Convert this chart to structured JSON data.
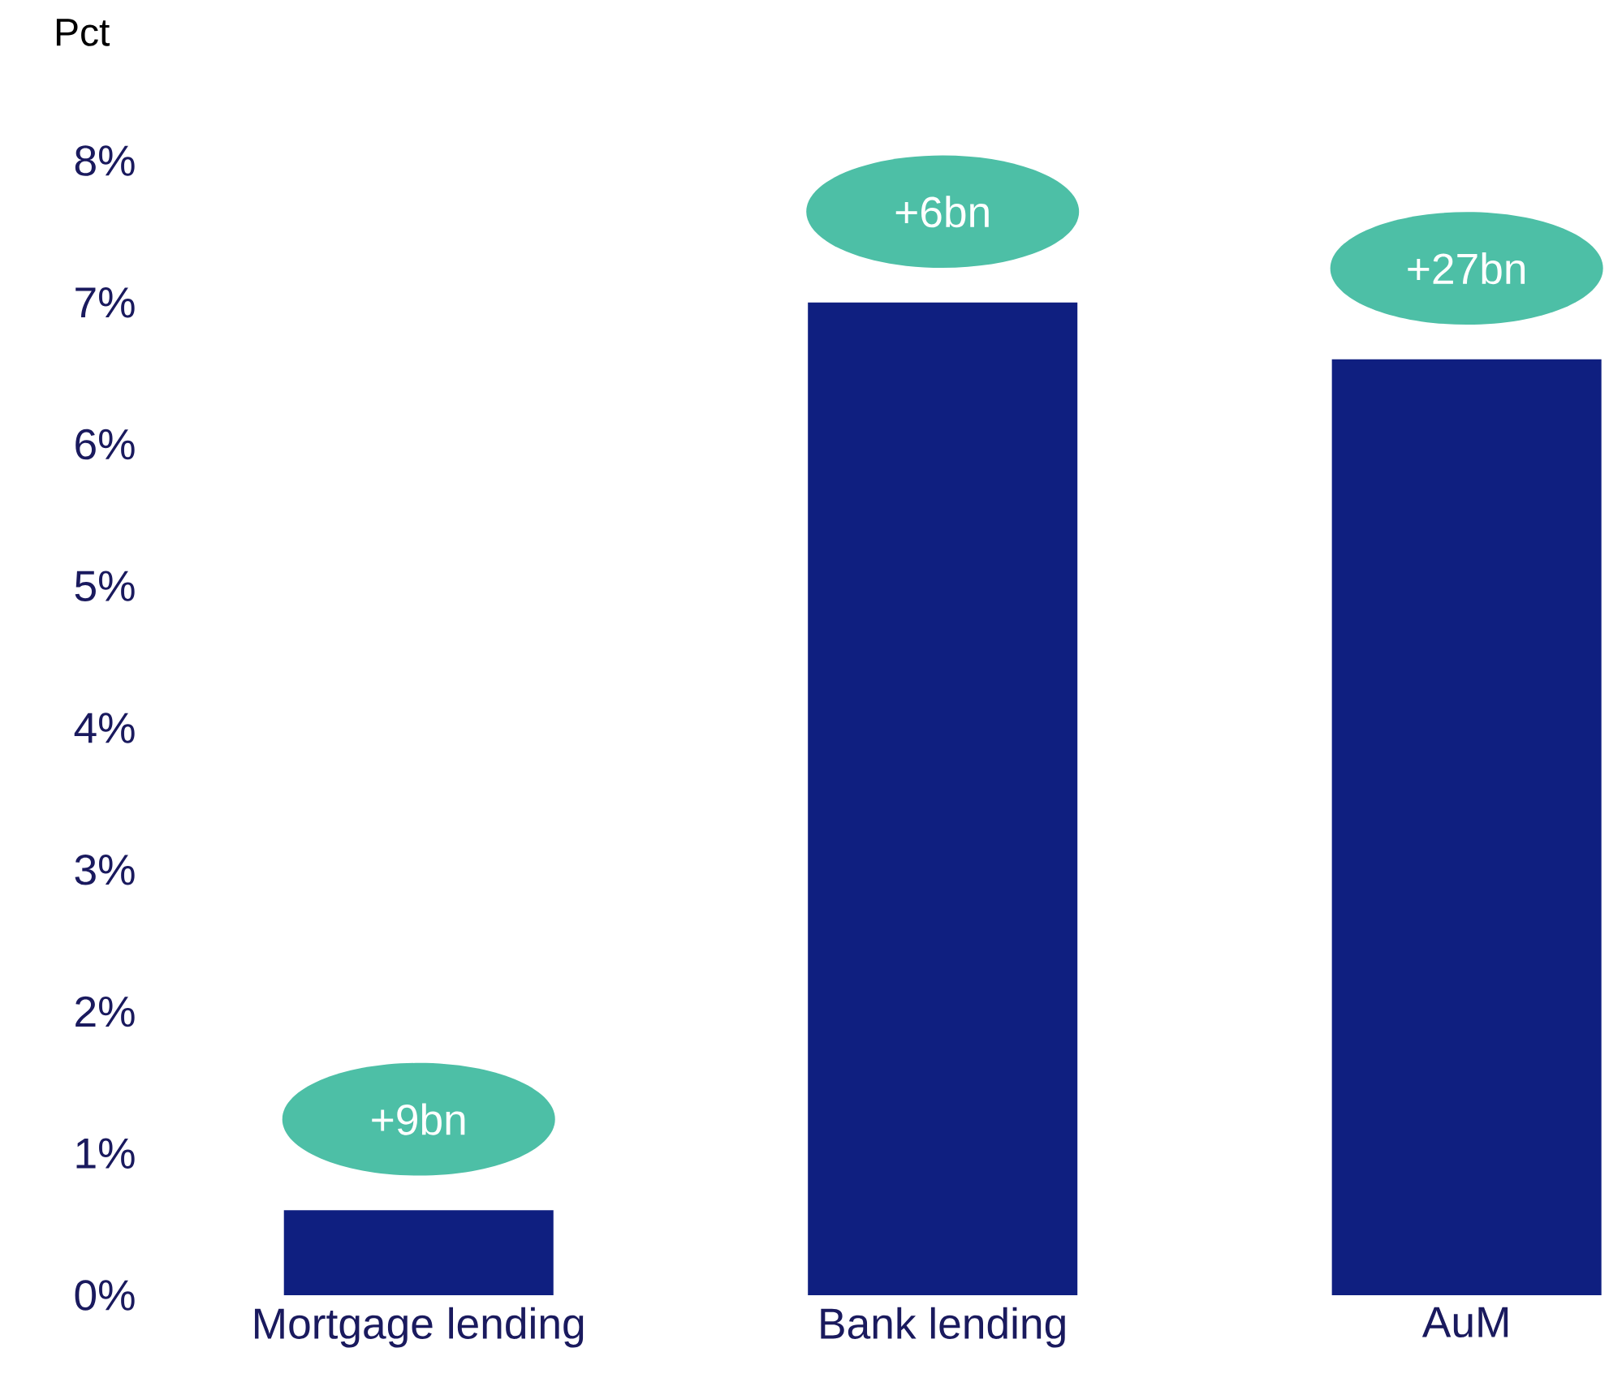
{
  "chart_data": {
    "type": "bar",
    "ylabel": "Pct",
    "categories": [
      "Mortgage lending",
      "Bank lending",
      "AuM"
    ],
    "values": [
      0.6,
      7.0,
      6.6
    ],
    "color": "#0f1f80",
    "ylim": [
      0,
      8
    ],
    "yticks": [
      {
        "value": 0,
        "label": "0%"
      },
      {
        "value": 1,
        "label": "1%"
      },
      {
        "value": 2,
        "label": "2%"
      },
      {
        "value": 3,
        "label": "3%"
      },
      {
        "value": 4,
        "label": "4%"
      },
      {
        "value": 5,
        "label": "5%"
      },
      {
        "value": 6,
        "label": "6%"
      },
      {
        "value": 7,
        "label": "7%"
      },
      {
        "value": 8,
        "label": "8%"
      }
    ],
    "grid": false,
    "annotations": [
      {
        "text": "+9bn",
        "x": "Mortgage lending",
        "y": 0.6
      },
      {
        "text": "+6bn",
        "x": "Bank lending",
        "y": 7.0
      },
      {
        "text": "+27bn",
        "x": "AuM",
        "y": 6.6
      }
    ]
  }
}
